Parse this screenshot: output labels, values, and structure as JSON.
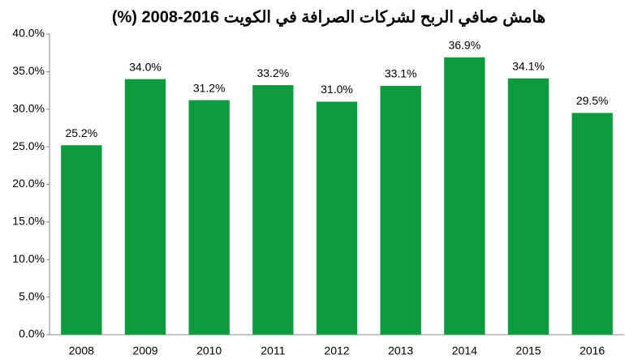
{
  "chart_data": {
    "type": "bar",
    "title": "هامش صافي الربح لشركات الصرافة في الكويت 2016-2008 (%)",
    "categories": [
      "2008",
      "2009",
      "2010",
      "2011",
      "2012",
      "2013",
      "2014",
      "2015",
      "2016"
    ],
    "values": [
      25.2,
      34.0,
      31.2,
      33.2,
      31.0,
      33.1,
      36.9,
      34.1,
      29.5
    ],
    "value_labels": [
      "25.2%",
      "34.0%",
      "31.2%",
      "33.2%",
      "31.0%",
      "33.1%",
      "36.9%",
      "34.1%",
      "29.5%"
    ],
    "color": "#0e9a3e",
    "ylim": [
      0,
      40
    ],
    "yticks": [
      {
        "value": 0,
        "label": "0.0%"
      },
      {
        "value": 5,
        "label": "5.0%"
      },
      {
        "value": 10,
        "label": "10.0%"
      },
      {
        "value": 15,
        "label": "15.0%"
      },
      {
        "value": 20,
        "label": "20.0%"
      },
      {
        "value": 25,
        "label": "25.0%"
      },
      {
        "value": 30,
        "label": "30.0%"
      },
      {
        "value": 35,
        "label": "35.0%"
      },
      {
        "value": 40,
        "label": "40.0%"
      }
    ],
    "grid": false
  }
}
